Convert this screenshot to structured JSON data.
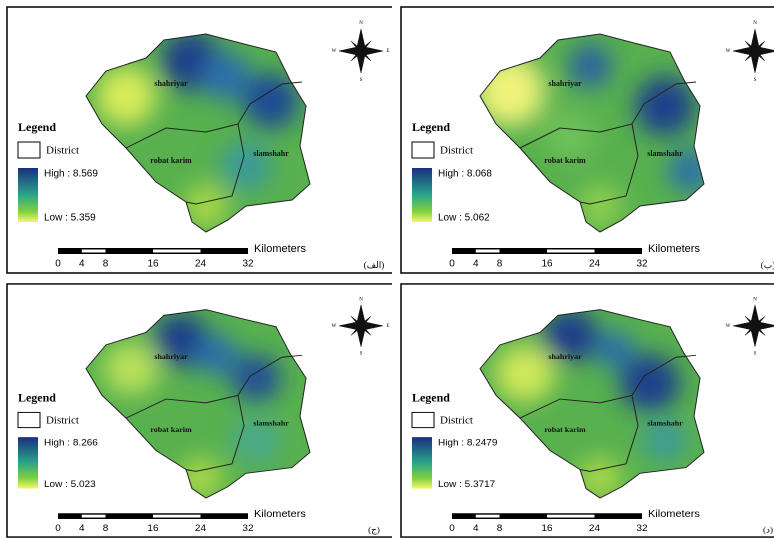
{
  "legend_title": "Legend",
  "district": "District",
  "kilometers": "Kilometers",
  "scale_ticks": [
    0,
    4,
    8,
    16,
    24,
    32
  ],
  "compass": {
    "n": "N",
    "e": "E",
    "s": "S",
    "w": "W"
  },
  "panels": [
    {
      "label": "(الف)",
      "high": "High : 8.569",
      "low": "Low : 5.359",
      "districts": [
        "shahriyar",
        "robat karim",
        "slamshahr"
      ]
    },
    {
      "label": "(ب)",
      "high": "High : 8.068",
      "low": "Low : 5.062",
      "districts": [
        "shahriyar",
        "robat karim",
        "slamshahr"
      ]
    },
    {
      "label": "(ج)",
      "high": "High : 8.266",
      "low": "Low : 5.023",
      "districts": [
        "shahriyar",
        "robat karim",
        "slamshahr"
      ]
    },
    {
      "label": "(د)",
      "high": "High : 8.2479",
      "low": "Low : 5.3717",
      "districts": [
        "shahriyar",
        "robat karim",
        "slamshahr"
      ]
    }
  ]
}
